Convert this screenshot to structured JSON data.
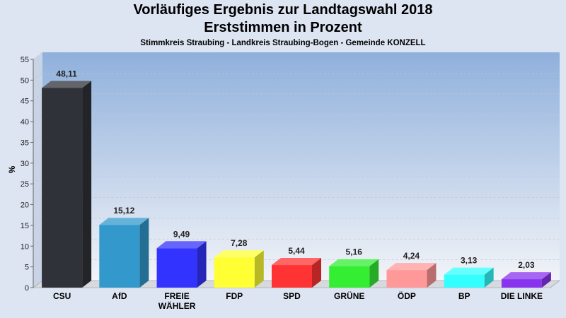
{
  "chart_data": {
    "type": "bar",
    "title": "Vorläufiges Ergebnis zur Landtagswahl 2018",
    "subtitle": "Erststimmen in Prozent",
    "subsubtitle": "Stimmkreis Straubing - Landkreis Straubing-Bogen - Gemeinde KONZELL",
    "xlabel": "",
    "ylabel": "%",
    "ylim": [
      0,
      55
    ],
    "yticks": [
      0,
      5,
      10,
      15,
      20,
      25,
      30,
      35,
      40,
      45,
      50,
      55
    ],
    "grid": true,
    "categories": [
      "CSU",
      "AfD",
      "FREIE WÄHLER",
      "FDP",
      "SPD",
      "GRÜNE",
      "ÖDP",
      "BP",
      "DIE LINKE"
    ],
    "values": [
      48.11,
      15.12,
      9.49,
      7.28,
      5.44,
      5.16,
      4.24,
      3.13,
      2.03
    ],
    "value_labels": [
      "48,11",
      "15,12",
      "9,49",
      "7,28",
      "5,44",
      "5,16",
      "4,24",
      "3,13",
      "2,03"
    ],
    "category_lines": [
      [
        "CSU"
      ],
      [
        "AfD"
      ],
      [
        "FREIE",
        "WÄHLER"
      ],
      [
        "FDP"
      ],
      [
        "SPD"
      ],
      [
        "GRÜNE"
      ],
      [
        "ÖDP"
      ],
      [
        "BP"
      ],
      [
        "DIE LINKE"
      ]
    ],
    "colors": [
      "#2f3238",
      "#3399cc",
      "#3333ff",
      "#ffff33",
      "#ff3333",
      "#33ee33",
      "#ff9999",
      "#33ffff",
      "#8833ee"
    ]
  }
}
